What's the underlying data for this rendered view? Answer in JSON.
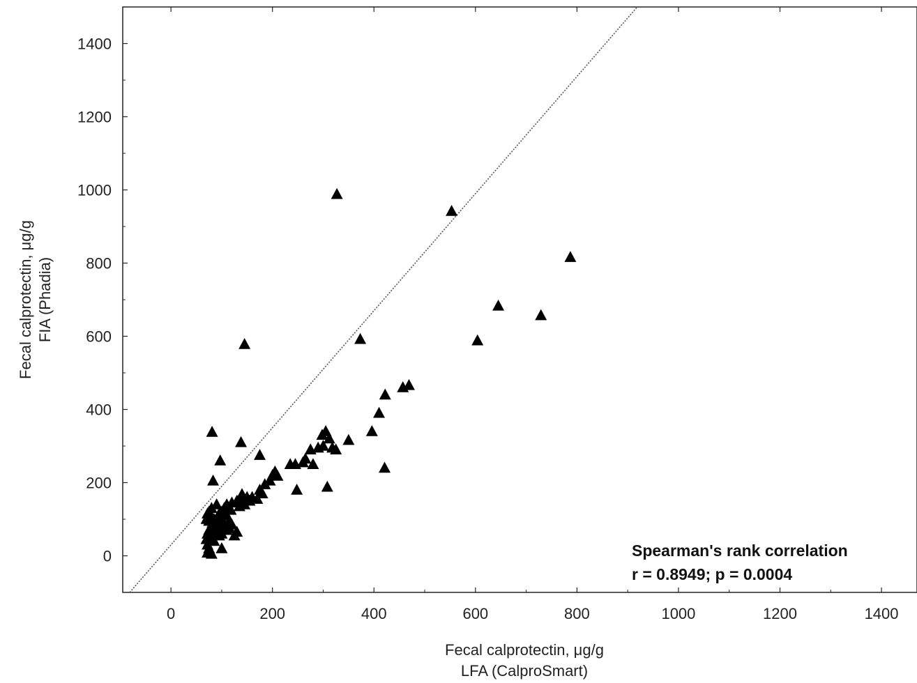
{
  "chart_data": {
    "type": "scatter",
    "title": "",
    "xlabel": [
      "Fecal calprotectin, μg/g",
      "LFA (CalproSmart)"
    ],
    "ylabel": [
      "Fecal calprotectin, μg/g",
      "FIA (Phadia)"
    ],
    "xlim": [
      -95,
      1470
    ],
    "ylim": [
      -100,
      1500
    ],
    "x_ticks": [
      0,
      200,
      400,
      600,
      800,
      1000,
      1200,
      1400
    ],
    "y_ticks": [
      0,
      200,
      400,
      600,
      800,
      1000,
      1200,
      1400
    ],
    "grid": false,
    "marker": "triangle",
    "marker_color": "#000000",
    "line_color": "#555555",
    "reference_line": {
      "style": "dotted",
      "slope": 1.6,
      "intercept": 30
    },
    "annotation": [
      "Spearman's rank correlation",
      "r = 0.8949; p = 0.0004"
    ],
    "series": [
      {
        "points": [
          [
            327,
            988
          ],
          [
            553,
            942
          ],
          [
            787,
            816
          ],
          [
            645,
            683
          ],
          [
            729,
            657
          ],
          [
            373,
            592
          ],
          [
            604,
            588
          ],
          [
            145,
            578
          ],
          [
            469,
            466
          ],
          [
            457,
            460
          ],
          [
            422,
            440
          ],
          [
            410,
            390
          ],
          [
            81,
            338
          ],
          [
            396,
            340
          ],
          [
            350,
            316
          ],
          [
            138,
            310
          ],
          [
            305,
            340
          ],
          [
            298,
            330
          ],
          [
            312,
            320
          ],
          [
            318,
            295
          ],
          [
            300,
            300
          ],
          [
            290,
            295
          ],
          [
            325,
            290
          ],
          [
            275,
            290
          ],
          [
            265,
            265
          ],
          [
            260,
            255
          ],
          [
            280,
            250
          ],
          [
            235,
            250
          ],
          [
            245,
            250
          ],
          [
            421,
            240
          ],
          [
            175,
            275
          ],
          [
            97,
            260
          ],
          [
            83,
            205
          ],
          [
            308,
            188
          ],
          [
            248,
            180
          ],
          [
            205,
            230
          ],
          [
            200,
            220
          ],
          [
            210,
            218
          ],
          [
            195,
            205
          ],
          [
            185,
            195
          ],
          [
            175,
            180
          ],
          [
            180,
            170
          ],
          [
            160,
            160
          ],
          [
            170,
            155
          ],
          [
            150,
            160
          ],
          [
            140,
            155
          ],
          [
            140,
            168
          ],
          [
            130,
            150
          ],
          [
            120,
            145
          ],
          [
            110,
            140
          ],
          [
            105,
            130
          ],
          [
            100,
            120
          ],
          [
            95,
            115
          ],
          [
            90,
            140
          ],
          [
            80,
            130
          ],
          [
            75,
            120
          ],
          [
            72,
            115
          ],
          [
            70,
            100
          ],
          [
            75,
            95
          ],
          [
            85,
            100
          ],
          [
            90,
            90
          ],
          [
            100,
            100
          ],
          [
            110,
            110
          ],
          [
            115,
            95
          ],
          [
            120,
            85
          ],
          [
            105,
            80
          ],
          [
            90,
            80
          ],
          [
            80,
            75
          ],
          [
            75,
            70
          ],
          [
            72,
            60
          ],
          [
            70,
            45
          ],
          [
            72,
            30
          ],
          [
            75,
            20
          ],
          [
            72,
            8
          ],
          [
            80,
            5
          ],
          [
            100,
            20
          ],
          [
            85,
            40
          ],
          [
            95,
            55
          ],
          [
            110,
            70
          ],
          [
            125,
            55
          ],
          [
            130,
            65
          ],
          [
            115,
            75
          ],
          [
            100,
            60
          ],
          [
            88,
            65
          ],
          [
            78,
            50
          ],
          [
            82,
            90
          ],
          [
            92,
            105
          ],
          [
            102,
            95
          ],
          [
            118,
            125
          ],
          [
            135,
            135
          ],
          [
            145,
            140
          ],
          [
            155,
            150
          ]
        ]
      }
    ]
  }
}
